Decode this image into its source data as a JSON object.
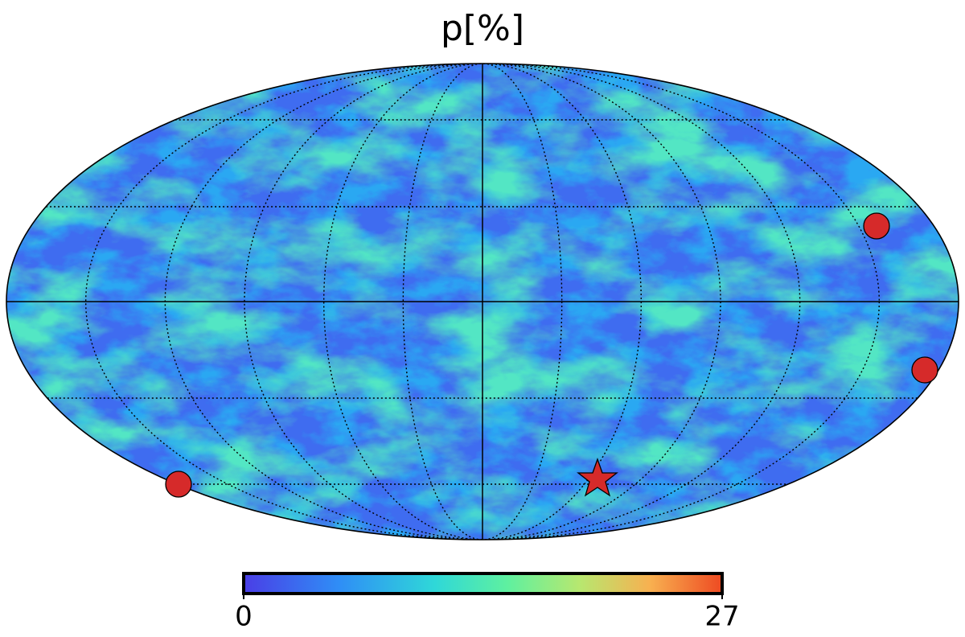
{
  "title": "p[%]",
  "colorbar": {
    "range": [
      0,
      27
    ],
    "ticks": [
      0,
      27
    ]
  }
}
